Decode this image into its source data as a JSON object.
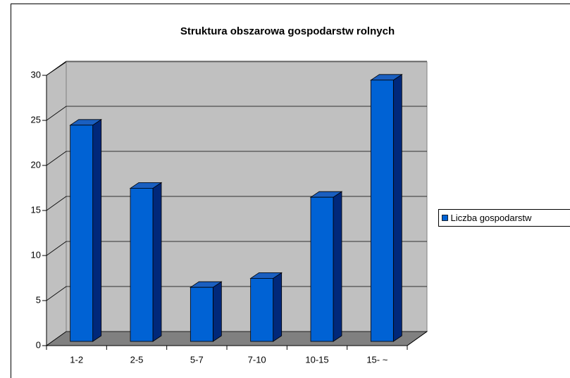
{
  "chart_data": {
    "type": "bar",
    "title": "Struktura obszarowa gospodarstw rolnych",
    "categories": [
      "1-2",
      "2-5",
      "5-7",
      "7-10",
      "10-15",
      "15- ~"
    ],
    "series": [
      {
        "name": "Liczba gospodarstw",
        "color": "#0062d4",
        "values": [
          24,
          17,
          6,
          7,
          16,
          29
        ]
      }
    ],
    "ylim": [
      0,
      30
    ],
    "yticks": [
      0,
      5,
      10,
      15,
      20,
      25,
      30
    ],
    "grid": true,
    "legend": "right"
  }
}
